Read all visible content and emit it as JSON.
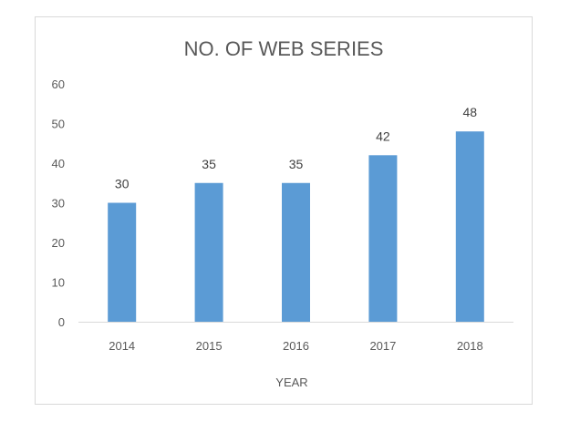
{
  "chart_data": {
    "type": "bar",
    "title": "NO. OF WEB SERIES",
    "xlabel": "YEAR",
    "ylabel": "",
    "categories": [
      "2014",
      "2015",
      "2016",
      "2017",
      "2018"
    ],
    "values": [
      30,
      35,
      35,
      42,
      48
    ],
    "data_labels": [
      "30",
      "35",
      "35",
      "42",
      "48"
    ],
    "ylim": [
      0,
      60
    ],
    "yticks": [
      0,
      10,
      20,
      30,
      40,
      50,
      60
    ],
    "grid": false,
    "legend": "none",
    "bar_color": "#5b9bd5"
  }
}
